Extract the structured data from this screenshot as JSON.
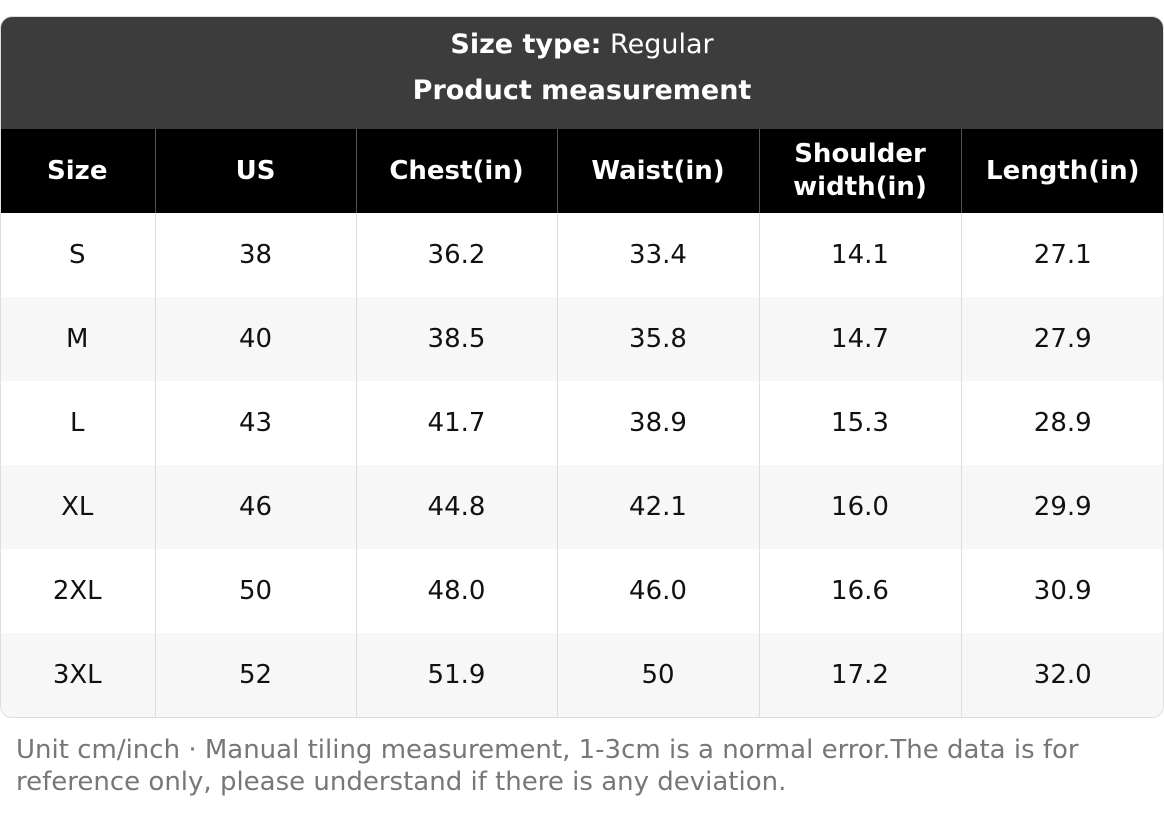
{
  "header": {
    "label": "Size type:",
    "value": "Regular",
    "title": "Product measurement"
  },
  "table": {
    "columns": [
      "Size",
      "US",
      "Chest(in)",
      "Waist(in)",
      "Shoulder width(in)",
      "Length(in)"
    ],
    "rows": [
      [
        "S",
        "38",
        "36.2",
        "33.4",
        "14.1",
        "27.1"
      ],
      [
        "M",
        "40",
        "38.5",
        "35.8",
        "14.7",
        "27.9"
      ],
      [
        "L",
        "43",
        "41.7",
        "38.9",
        "15.3",
        "28.9"
      ],
      [
        "XL",
        "46",
        "44.8",
        "42.1",
        "16.0",
        "29.9"
      ],
      [
        "2XL",
        "50",
        "48.0",
        "46.0",
        "16.6",
        "30.9"
      ],
      [
        "3XL",
        "52",
        "51.9",
        "50",
        "17.2",
        "32.0"
      ]
    ]
  },
  "footnote": "Unit cm/inch · Manual tiling measurement, 1-3cm is a normal error.The data is for reference only, please understand if there is any deviation."
}
